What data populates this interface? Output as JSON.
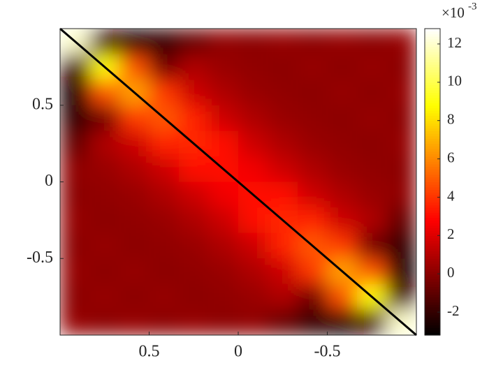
{
  "chart_data": {
    "type": "heatmap",
    "colormap": "hot",
    "xlim": [
      1,
      -1
    ],
    "ylim": [
      -1,
      1
    ],
    "xticks": [
      0.5,
      0,
      -0.5
    ],
    "yticks": [
      -0.5,
      0,
      0.5
    ],
    "z": [
      [
        12,
        -1.5,
        -2.8,
        -2,
        -0.8,
        0.2,
        0.1,
        0.3,
        0.1,
        0.3,
        0.1,
        0.3
      ],
      [
        -1.5,
        9,
        4.7,
        -0.5,
        0.9,
        0.4,
        0.2,
        0.1,
        0.3,
        0.1,
        0.3,
        0.1
      ],
      [
        -2.8,
        4.7,
        6.6,
        4.1,
        1.6,
        0.9,
        0.4,
        0.2,
        0.1,
        0.3,
        0.1,
        0.3
      ],
      [
        -2,
        -0.5,
        4.1,
        4.9,
        3.6,
        1.6,
        0.9,
        0.4,
        0.2,
        0.1,
        0.3,
        0.1
      ],
      [
        -0.8,
        0.9,
        1.6,
        3.6,
        3.7,
        3.0,
        1.6,
        0.9,
        0.4,
        0.2,
        0.1,
        0.3
      ],
      [
        0.2,
        0.4,
        0.9,
        1.6,
        3.0,
        3.1,
        2.5,
        1.6,
        0.9,
        0.4,
        0.2,
        0.1
      ],
      [
        0.1,
        0.2,
        0.4,
        0.9,
        1.6,
        2.5,
        3.1,
        3.0,
        1.6,
        0.9,
        0.4,
        0.2
      ],
      [
        0.3,
        0.1,
        0.2,
        0.4,
        0.9,
        1.6,
        3.0,
        3.7,
        3.6,
        1.6,
        0.9,
        -0.8
      ],
      [
        0.1,
        0.3,
        0.1,
        0.2,
        0.4,
        0.9,
        1.6,
        3.6,
        4.9,
        4.1,
        -0.5,
        -2
      ],
      [
        0.3,
        0.1,
        0.3,
        0.1,
        0.2,
        0.4,
        0.9,
        1.6,
        4.1,
        6.6,
        4.7,
        -2.8
      ],
      [
        0.1,
        0.3,
        0.1,
        0.3,
        0.1,
        0.2,
        0.4,
        0.9,
        -0.5,
        4.7,
        9,
        -1.5
      ],
      [
        0.3,
        0.1,
        0.3,
        0.1,
        0.3,
        0.1,
        0.2,
        -0.8,
        -2,
        -2.8,
        -1.5,
        12
      ]
    ],
    "line": {
      "x": [
        1,
        -1
      ],
      "y": [
        1,
        -1
      ],
      "color": "#000000"
    },
    "clim": [
      -3.2,
      12.8
    ],
    "cticks": [
      -2,
      0,
      2,
      4,
      6,
      8,
      10,
      12
    ],
    "colorbar_multiplier": "×10",
    "colorbar_exponent": "-3"
  }
}
